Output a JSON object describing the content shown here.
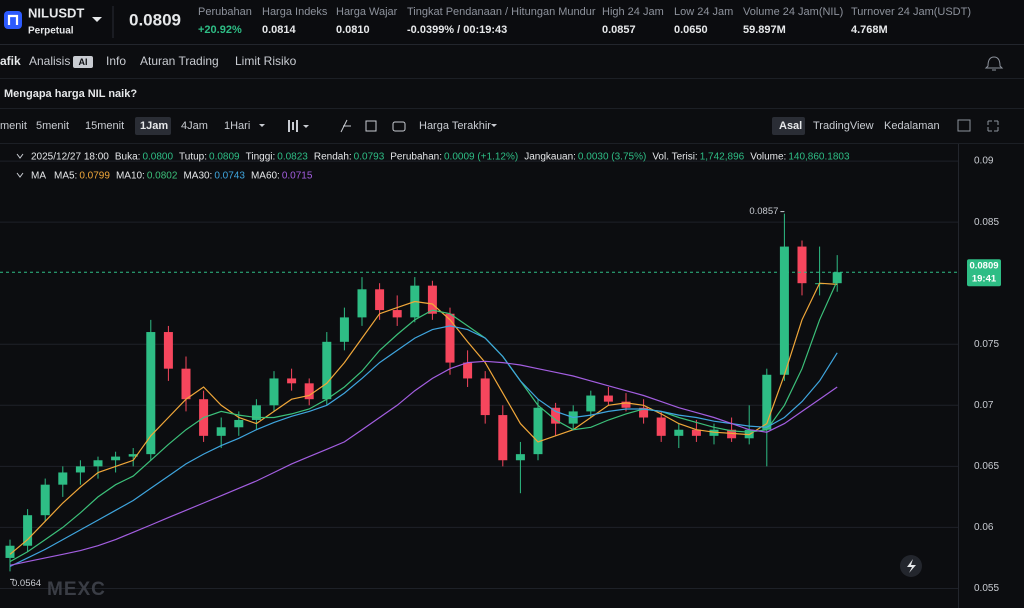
{
  "header": {
    "symbol": "NILUSDT",
    "contract": "Perpetual",
    "price": "0.0809",
    "stats": [
      {
        "label": "Perubahan",
        "value": "+20.92%"
      },
      {
        "label": "Harga Indeks",
        "value": "0.0814"
      },
      {
        "label": "Harga Wajar",
        "value": "0.0810"
      },
      {
        "label": "Tingkat Pendanaan / Hitungan Mundur",
        "value": "-0.0399% / 00:19:43"
      },
      {
        "label": "High 24 Jam",
        "value": "0.0857"
      },
      {
        "label": "Low 24 Jam",
        "value": "0.0650"
      },
      {
        "label": "Volume 24 Jam(NIL)",
        "value": "59.897M"
      },
      {
        "label": "Turnover 24 Jam(USDT)",
        "value": "4.768M"
      }
    ]
  },
  "tabs": [
    "afik",
    "Analisis",
    "Info",
    "Aturan Trading",
    "Limit Risiko"
  ],
  "ai_badge": "AI",
  "question": "Mengapa harga NIL naik?",
  "toolbar": {
    "intervals": [
      "menit",
      "5menit",
      "15menit",
      "1Jam",
      "4Jam",
      "1Hari"
    ],
    "price_source": "Harga Terakhir",
    "views": [
      "Asal",
      "TradingView",
      "Kedalaman"
    ]
  },
  "watermark": "MEXC",
  "chart_data": {
    "type": "candlestick",
    "info": {
      "time": "2025/12/27 18:00",
      "items": [
        {
          "label": "Buka:",
          "value": "0.0800"
        },
        {
          "label": "Tutup:",
          "value": "0.0809"
        },
        {
          "label": "Tinggi:",
          "value": "0.0823"
        },
        {
          "label": "Rendah:",
          "value": "0.0793"
        },
        {
          "label": "Perubahan:",
          "value": "0.0009 (+1.12%)"
        },
        {
          "label": "Jangkauan:",
          "value": "0.0030 (3.75%)"
        },
        {
          "label": "Vol. Terisi:",
          "value": "1,742,896"
        },
        {
          "label": "Volume:",
          "value": "140,860.1803"
        }
      ]
    },
    "ma_title": "MA",
    "open": [
      0.0575,
      0.0585,
      0.061,
      0.0635,
      0.0645,
      0.065,
      0.0655,
      0.0658,
      0.066,
      0.076,
      0.073,
      0.0705,
      0.0675,
      0.0682,
      0.0688,
      0.07,
      0.0722,
      0.0718,
      0.0705,
      0.0752,
      0.0772,
      0.0795,
      0.0778,
      0.0772,
      0.0798,
      0.0775,
      0.0735,
      0.0722,
      0.0692,
      0.0655,
      0.066,
      0.0698,
      0.0685,
      0.0695,
      0.0708,
      0.0703,
      0.0698,
      0.069,
      0.0675,
      0.068,
      0.0675,
      0.068,
      0.0673,
      0.068,
      0.0725,
      0.083,
      0.08,
      0.08
    ],
    "high": [
      0.059,
      0.0615,
      0.064,
      0.065,
      0.0655,
      0.0658,
      0.0662,
      0.0665,
      0.077,
      0.0765,
      0.074,
      0.0712,
      0.069,
      0.0695,
      0.0705,
      0.0728,
      0.073,
      0.0722,
      0.076,
      0.078,
      0.0805,
      0.08,
      0.079,
      0.0805,
      0.0802,
      0.078,
      0.0745,
      0.0728,
      0.07,
      0.067,
      0.0705,
      0.0702,
      0.07,
      0.0712,
      0.0715,
      0.071,
      0.0705,
      0.0695,
      0.0685,
      0.0688,
      0.0685,
      0.069,
      0.07,
      0.073,
      0.0857,
      0.0835,
      0.083,
      0.0823
    ],
    "low": [
      0.0564,
      0.058,
      0.0605,
      0.0625,
      0.0635,
      0.064,
      0.0645,
      0.065,
      0.0655,
      0.072,
      0.0695,
      0.067,
      0.0665,
      0.0675,
      0.068,
      0.0695,
      0.0712,
      0.07,
      0.07,
      0.0745,
      0.0765,
      0.077,
      0.0765,
      0.0768,
      0.077,
      0.0725,
      0.0715,
      0.0685,
      0.065,
      0.0628,
      0.0655,
      0.0675,
      0.068,
      0.069,
      0.07,
      0.0695,
      0.0685,
      0.067,
      0.0665,
      0.067,
      0.0668,
      0.067,
      0.0668,
      0.065,
      0.072,
      0.079,
      0.079,
      0.0793
    ],
    "close": [
      0.0585,
      0.061,
      0.0635,
      0.0645,
      0.065,
      0.0655,
      0.0658,
      0.066,
      0.076,
      0.073,
      0.0705,
      0.0675,
      0.0682,
      0.0688,
      0.07,
      0.0722,
      0.0718,
      0.0705,
      0.0752,
      0.0772,
      0.0795,
      0.0778,
      0.0772,
      0.0798,
      0.0775,
      0.0735,
      0.0722,
      0.0692,
      0.0655,
      0.066,
      0.0698,
      0.0685,
      0.0695,
      0.0708,
      0.0703,
      0.0698,
      0.069,
      0.0675,
      0.068,
      0.0675,
      0.068,
      0.0673,
      0.068,
      0.0725,
      0.083,
      0.08,
      0.08,
      0.0809
    ],
    "up_color": "#2ebd85",
    "down_color": "#f6465d",
    "series": [
      {
        "name": "MA5:",
        "color": "#f0a73a",
        "values": [
          0.0578,
          0.059,
          0.0605,
          0.062,
          0.0633,
          0.0645,
          0.065,
          0.0655,
          0.0675,
          0.069,
          0.0705,
          0.0715,
          0.07,
          0.069,
          0.0685,
          0.0695,
          0.0705,
          0.0708,
          0.0718,
          0.0735,
          0.0755,
          0.0775,
          0.078,
          0.0785,
          0.0783,
          0.077,
          0.0752,
          0.0735,
          0.071,
          0.0685,
          0.067,
          0.0675,
          0.068,
          0.069,
          0.07,
          0.0702,
          0.07,
          0.0693,
          0.0685,
          0.068,
          0.0678,
          0.0677,
          0.0676,
          0.0685,
          0.0725,
          0.077,
          0.08,
          0.0799
        ]
      },
      {
        "name": "MA10:",
        "color": "#3cc07a",
        "values": [
          0.0572,
          0.058,
          0.059,
          0.06,
          0.0612,
          0.0625,
          0.0635,
          0.0642,
          0.0655,
          0.0668,
          0.068,
          0.069,
          0.0695,
          0.0692,
          0.069,
          0.069,
          0.0693,
          0.0697,
          0.0705,
          0.0715,
          0.0728,
          0.0745,
          0.0758,
          0.077,
          0.0778,
          0.0775,
          0.0765,
          0.0755,
          0.074,
          0.072,
          0.07,
          0.0688,
          0.068,
          0.0682,
          0.0688,
          0.0693,
          0.0697,
          0.0695,
          0.069,
          0.0686,
          0.0682,
          0.0679,
          0.0678,
          0.068,
          0.07,
          0.073,
          0.077,
          0.0802
        ]
      },
      {
        "name": "MA30:",
        "color": "#3fa5de",
        "values": [
          0.0568,
          0.0575,
          0.0582,
          0.059,
          0.0598,
          0.0606,
          0.0614,
          0.0622,
          0.0632,
          0.0642,
          0.0652,
          0.066,
          0.0667,
          0.0673,
          0.068,
          0.0686,
          0.0691,
          0.0695,
          0.07,
          0.071,
          0.0722,
          0.0735,
          0.0745,
          0.0755,
          0.0762,
          0.0765,
          0.0762,
          0.0755,
          0.074,
          0.072,
          0.0705,
          0.0695,
          0.069,
          0.0692,
          0.0695,
          0.0697,
          0.0697,
          0.0695,
          0.0692,
          0.069,
          0.0687,
          0.0685,
          0.0683,
          0.0682,
          0.069,
          0.0703,
          0.072,
          0.0743
        ]
      },
      {
        "name": "MA60:",
        "color": "#a35ee0",
        "values": [
          0.0569,
          0.0572,
          0.0575,
          0.0578,
          0.0581,
          0.0585,
          0.059,
          0.0596,
          0.0602,
          0.0608,
          0.0614,
          0.062,
          0.0626,
          0.0632,
          0.0638,
          0.0645,
          0.0652,
          0.0658,
          0.0664,
          0.067,
          0.068,
          0.069,
          0.07,
          0.0712,
          0.0722,
          0.073,
          0.0735,
          0.0736,
          0.0735,
          0.0733,
          0.073,
          0.0727,
          0.0724,
          0.072,
          0.0716,
          0.0712,
          0.0708,
          0.0703,
          0.0698,
          0.0694,
          0.069,
          0.0685,
          0.068,
          0.0678,
          0.0685,
          0.0695,
          0.0705,
          0.0715
        ]
      }
    ],
    "last_price": 0.0809,
    "countdown": "19:41",
    "high_index": 44,
    "low_index": 0,
    "ylim": [
      0.0534,
      0.0914
    ],
    "yticks": [
      0.09,
      0.085,
      0.075,
      0.07,
      0.065,
      0.06,
      0.055
    ],
    "grid": true
  }
}
